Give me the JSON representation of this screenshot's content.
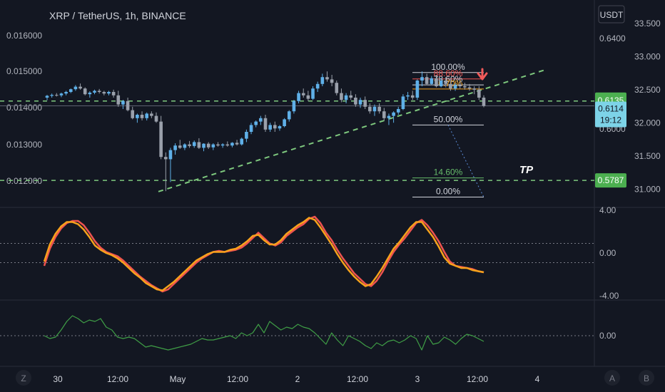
{
  "header": {
    "symbol": "XRP / TetherUS, 1h, BINANCE",
    "currency_button": "USDT"
  },
  "colors": {
    "background": "#131722",
    "up_candle": "#5fb0e8",
    "down_candle": "#9aa0ab",
    "dashed_green": "#7ec87e",
    "signal_red": "#ef5350",
    "signal_orange": "#f7a21b",
    "volume_green": "#3f9e46",
    "arrow_red": "#f05a5a",
    "marker_price": "#7dd3e8",
    "marker_green": "#4caf50"
  },
  "chart_data": {
    "type": "candlestick",
    "x_tick_labels": [
      "30",
      "12:00",
      "May",
      "12:00",
      "2",
      "12:00",
      "3",
      "12:00",
      "4"
    ],
    "left_axis_labels": [
      "0.016000",
      "0.015000",
      "0.014000",
      "0.013000",
      "0.012000"
    ],
    "right_axis_labels": [
      "0.6400",
      "0.6000"
    ],
    "far_right_axis_labels": [
      "33.500",
      "33.000",
      "32.500",
      "32.000",
      "31.500",
      "31.000"
    ],
    "price_tags": [
      {
        "label": "0.6135",
        "price": 0.6135
      },
      {
        "label": "0.6114",
        "price": 0.6114,
        "countdown": "19:12"
      },
      {
        "label": "0.5787",
        "price": 0.5787
      }
    ],
    "fibonacci_levels": [
      {
        "label": "100.00%",
        "price": 0.626
      },
      {
        "label": "88.60%",
        "price": 0.6232
      },
      {
        "label": "78.60%",
        "price": 0.6206
      },
      {
        "label": "70.70%",
        "price": 0.6188
      },
      {
        "label": "50.00%",
        "price": 0.603
      },
      {
        "label": "14.60%",
        "price": 0.5798
      },
      {
        "label": "0.00%",
        "price": 0.5714
      }
    ],
    "annotation": "TP",
    "horizontal_levels": [
      0.6135,
      0.5787
    ],
    "trendline": {
      "from": 0.5738,
      "to": 0.627
    },
    "candles": [
      [
        0.615,
        0.6162,
        0.6139,
        0.6158
      ],
      [
        0.6158,
        0.6168,
        0.615,
        0.6162
      ],
      [
        0.6162,
        0.617,
        0.6155,
        0.616
      ],
      [
        0.616,
        0.6172,
        0.6152,
        0.6168
      ],
      [
        0.6168,
        0.618,
        0.616,
        0.6175
      ],
      [
        0.6175,
        0.619,
        0.617,
        0.6187
      ],
      [
        0.6187,
        0.6205,
        0.618,
        0.6198
      ],
      [
        0.6198,
        0.6212,
        0.6185,
        0.619
      ],
      [
        0.619,
        0.6195,
        0.616,
        0.6165
      ],
      [
        0.6165,
        0.6178,
        0.615,
        0.6172
      ],
      [
        0.6172,
        0.6185,
        0.6165,
        0.618
      ],
      [
        0.618,
        0.6188,
        0.6168,
        0.6175
      ],
      [
        0.6175,
        0.618,
        0.616,
        0.6168
      ],
      [
        0.6168,
        0.618,
        0.616,
        0.6175
      ],
      [
        0.6175,
        0.6185,
        0.615,
        0.616
      ],
      [
        0.616,
        0.618,
        0.611,
        0.612
      ],
      [
        0.612,
        0.614,
        0.61,
        0.6135
      ],
      [
        0.6135,
        0.615,
        0.609,
        0.6095
      ],
      [
        0.6095,
        0.611,
        0.6055,
        0.606
      ],
      [
        0.606,
        0.608,
        0.604,
        0.6075
      ],
      [
        0.6075,
        0.609,
        0.605,
        0.606
      ],
      [
        0.606,
        0.6085,
        0.605,
        0.608
      ],
      [
        0.608,
        0.609,
        0.606,
        0.607
      ],
      [
        0.607,
        0.6085,
        0.604,
        0.6045
      ],
      [
        0.6045,
        0.607,
        0.588,
        0.589
      ],
      [
        0.589,
        0.591,
        0.574,
        0.588
      ],
      [
        0.588,
        0.593,
        0.578,
        0.592
      ],
      [
        0.592,
        0.595,
        0.59,
        0.594
      ],
      [
        0.594,
        0.5965,
        0.5925,
        0.593
      ],
      [
        0.593,
        0.595,
        0.592,
        0.5945
      ],
      [
        0.5945,
        0.596,
        0.593,
        0.5938
      ],
      [
        0.5938,
        0.5962,
        0.593,
        0.5955
      ],
      [
        0.5955,
        0.5972,
        0.5925,
        0.593
      ],
      [
        0.593,
        0.595,
        0.5915,
        0.5948
      ],
      [
        0.5948,
        0.5955,
        0.5925,
        0.5932
      ],
      [
        0.5932,
        0.595,
        0.592,
        0.5945
      ],
      [
        0.5945,
        0.5955,
        0.5935,
        0.594
      ],
      [
        0.594,
        0.595,
        0.593,
        0.5945
      ],
      [
        0.5945,
        0.5958,
        0.5935,
        0.594
      ],
      [
        0.594,
        0.5955,
        0.5932,
        0.5952
      ],
      [
        0.5952,
        0.5965,
        0.594,
        0.5945
      ],
      [
        0.5945,
        0.5975,
        0.594,
        0.597
      ],
      [
        0.597,
        0.601,
        0.5955,
        0.6
      ],
      [
        0.6,
        0.604,
        0.599,
        0.603
      ],
      [
        0.603,
        0.605,
        0.602,
        0.6045
      ],
      [
        0.6045,
        0.607,
        0.603,
        0.606
      ],
      [
        0.606,
        0.6075,
        0.6,
        0.601
      ],
      [
        0.601,
        0.604,
        0.6,
        0.603
      ],
      [
        0.603,
        0.6045,
        0.6,
        0.6015
      ],
      [
        0.6015,
        0.603,
        0.6005,
        0.6025
      ],
      [
        0.6025,
        0.606,
        0.602,
        0.6055
      ],
      [
        0.6055,
        0.6095,
        0.6045,
        0.609
      ],
      [
        0.609,
        0.614,
        0.608,
        0.6135
      ],
      [
        0.6135,
        0.618,
        0.6125,
        0.617
      ],
      [
        0.617,
        0.619,
        0.615,
        0.616
      ],
      [
        0.616,
        0.618,
        0.6135,
        0.6145
      ],
      [
        0.6145,
        0.62,
        0.614,
        0.619
      ],
      [
        0.619,
        0.622,
        0.6175,
        0.621
      ],
      [
        0.621,
        0.6255,
        0.62,
        0.624
      ],
      [
        0.624,
        0.6265,
        0.622,
        0.623
      ],
      [
        0.623,
        0.625,
        0.62,
        0.6215
      ],
      [
        0.6215,
        0.6225,
        0.616,
        0.617
      ],
      [
        0.617,
        0.619,
        0.613,
        0.614
      ],
      [
        0.614,
        0.617,
        0.6125,
        0.616
      ],
      [
        0.616,
        0.618,
        0.614,
        0.615
      ],
      [
        0.615,
        0.6165,
        0.611,
        0.612
      ],
      [
        0.612,
        0.615,
        0.6105,
        0.614
      ],
      [
        0.614,
        0.6155,
        0.61,
        0.611
      ],
      [
        0.611,
        0.6125,
        0.608,
        0.609
      ],
      [
        0.609,
        0.612,
        0.607,
        0.611
      ],
      [
        0.611,
        0.6125,
        0.608,
        0.609
      ],
      [
        0.609,
        0.6105,
        0.605,
        0.606
      ],
      [
        0.606,
        0.608,
        0.603,
        0.607
      ],
      [
        0.607,
        0.609,
        0.604,
        0.6085
      ],
      [
        0.6085,
        0.611,
        0.6075,
        0.61
      ],
      [
        0.61,
        0.6165,
        0.6095,
        0.6155
      ],
      [
        0.6155,
        0.6175,
        0.614,
        0.616
      ],
      [
        0.616,
        0.618,
        0.614,
        0.615
      ],
      [
        0.615,
        0.623,
        0.614,
        0.6225
      ],
      [
        0.6225,
        0.6265,
        0.62,
        0.624
      ],
      [
        0.624,
        0.6255,
        0.6205,
        0.621
      ],
      [
        0.621,
        0.6245,
        0.6205,
        0.6235
      ],
      [
        0.6235,
        0.625,
        0.6195,
        0.62
      ],
      [
        0.62,
        0.6235,
        0.6195,
        0.6225
      ],
      [
        0.6225,
        0.624,
        0.6195,
        0.621
      ],
      [
        0.621,
        0.6225,
        0.618,
        0.619
      ],
      [
        0.619,
        0.6215,
        0.618,
        0.6205
      ],
      [
        0.6205,
        0.622,
        0.619,
        0.62
      ],
      [
        0.62,
        0.6215,
        0.6185,
        0.6195
      ],
      [
        0.6195,
        0.621,
        0.618,
        0.619
      ],
      [
        0.619,
        0.62,
        0.6165,
        0.6185
      ],
      [
        0.6185,
        0.62,
        0.614,
        0.615
      ],
      [
        0.615,
        0.616,
        0.6108,
        0.6114
      ]
    ],
    "oscillator": {
      "axis_labels": [
        "4.00",
        "0.00",
        "-4.00"
      ],
      "levels": [
        0.9,
        -0.9
      ],
      "series": [
        {
          "color": "#ef5350",
          "values": [
            -1.2,
            0.4,
            1.5,
            2.3,
            2.8,
            3.0,
            3.0,
            2.6,
            1.9,
            1.1,
            0.5,
            0.1,
            -0.1,
            -0.3,
            -0.7,
            -1.2,
            -1.7,
            -2.2,
            -2.6,
            -3.0,
            -3.3,
            -3.6,
            -3.4,
            -2.9,
            -2.4,
            -1.9,
            -1.4,
            -0.9,
            -0.5,
            -0.2,
            0.1,
            0.2,
            0.1,
            0.2,
            0.3,
            0.5,
            0.9,
            1.4,
            1.9,
            1.4,
            0.9,
            0.7,
            1.0,
            1.6,
            2.0,
            2.4,
            2.7,
            3.2,
            3.4,
            2.8,
            1.9,
            1.2,
            0.3,
            -0.5,
            -1.2,
            -1.9,
            -2.4,
            -2.9,
            -3.1,
            -2.6,
            -1.8,
            -0.8,
            0.1,
            0.8,
            1.4,
            2.1,
            2.8,
            3.1,
            2.6,
            1.9,
            1.1,
            0.1,
            -0.8,
            -1.2,
            -1.3,
            -1.4,
            -1.5,
            -1.7,
            -1.8
          ]
        },
        {
          "color": "#f7a21b",
          "values": [
            -0.8,
            0.8,
            1.8,
            2.5,
            2.9,
            2.9,
            2.7,
            2.2,
            1.5,
            0.7,
            0.3,
            0.0,
            -0.2,
            -0.5,
            -0.9,
            -1.4,
            -1.9,
            -2.3,
            -2.8,
            -3.1,
            -3.4,
            -3.5,
            -3.1,
            -2.7,
            -2.2,
            -1.7,
            -1.2,
            -0.7,
            -0.4,
            -0.1,
            0.1,
            0.1,
            0.1,
            0.3,
            0.4,
            0.7,
            1.1,
            1.6,
            1.7,
            1.2,
            0.8,
            0.8,
            1.2,
            1.8,
            2.2,
            2.6,
            2.9,
            3.3,
            3.1,
            2.4,
            1.6,
            0.8,
            -0.1,
            -0.9,
            -1.6,
            -2.2,
            -2.7,
            -3.1,
            -2.9,
            -2.2,
            -1.4,
            -0.5,
            0.4,
            1.0,
            1.7,
            2.4,
            2.9,
            2.9,
            2.2,
            1.5,
            0.6,
            -0.4,
            -1.0,
            -1.2,
            -1.4,
            -1.4,
            -1.6,
            -1.7,
            -1.8
          ]
        }
      ]
    },
    "lower_indicator": {
      "axis_labels": [
        "0.00"
      ],
      "series": [
        {
          "color": "#3f9e46",
          "values": [
            0.0,
            -0.1,
            -0.05,
            0.2,
            0.5,
            0.7,
            0.6,
            0.45,
            0.55,
            0.5,
            0.6,
            0.3,
            0.2,
            -0.05,
            -0.1,
            -0.05,
            -0.1,
            -0.25,
            -0.4,
            -0.35,
            -0.4,
            -0.45,
            -0.5,
            -0.45,
            -0.4,
            -0.35,
            -0.3,
            -0.2,
            -0.1,
            -0.15,
            -0.15,
            -0.1,
            -0.05,
            0.0,
            -0.1,
            0.1,
            0.0,
            0.1,
            0.4,
            0.1,
            0.5,
            0.35,
            0.2,
            0.3,
            0.25,
            0.4,
            0.3,
            0.25,
            0.1,
            -0.1,
            -0.3,
            0.1,
            -0.15,
            -0.35,
            0.0,
            -0.1,
            -0.2,
            -0.35,
            -0.45,
            -0.25,
            -0.35,
            -0.2,
            -0.15,
            -0.25,
            -0.15,
            0.0,
            -0.1,
            -0.5,
            0.0,
            -0.3,
            -0.25,
            -0.05,
            -0.15,
            -0.3,
            -0.1,
            0.05,
            0.0,
            -0.1,
            -0.2
          ]
        }
      ]
    }
  },
  "bottom_axis": {
    "left_button": "Z",
    "right_buttons": [
      "A",
      "B"
    ]
  }
}
